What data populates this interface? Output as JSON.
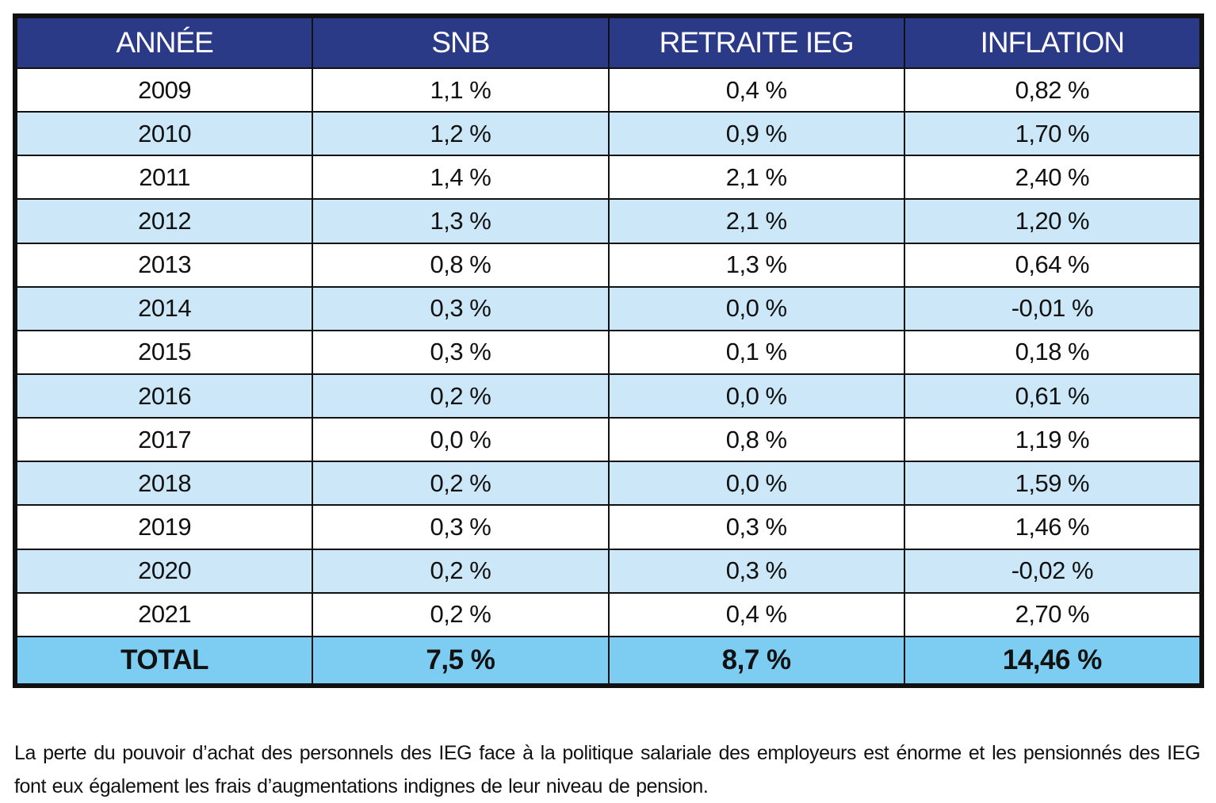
{
  "colors": {
    "header_bg": "#2b3a87",
    "header_fg": "#ffffff",
    "row_a": "#ffffff",
    "row_b": "#cce8f8",
    "total_bg": "#7ccdf1"
  },
  "chart_data": {
    "type": "table",
    "columns": [
      "ANNÉE",
      "SNB",
      "RETRAITE IEG",
      "INFLATION"
    ],
    "rows": [
      [
        "2009",
        "1,1 %",
        "0,4 %",
        "0,82 %"
      ],
      [
        "2010",
        "1,2 %",
        "0,9 %",
        "1,70 %"
      ],
      [
        "2011",
        "1,4 %",
        "2,1 %",
        "2,40 %"
      ],
      [
        "2012",
        "1,3 %",
        "2,1 %",
        "1,20 %"
      ],
      [
        "2013",
        "0,8 %",
        "1,3 %",
        "0,64 %"
      ],
      [
        "2014",
        "0,3 %",
        "0,0 %",
        "-0,01 %"
      ],
      [
        "2015",
        "0,3 %",
        "0,1 %",
        "0,18 %"
      ],
      [
        "2016",
        "0,2 %",
        "0,0 %",
        "0,61 %"
      ],
      [
        "2017",
        "0,0 %",
        "0,8 %",
        "1,19 %"
      ],
      [
        "2018",
        "0,2 %",
        "0,0 %",
        "1,59 %"
      ],
      [
        "2019",
        "0,3 %",
        "0,3 %",
        "1,46 %"
      ],
      [
        "2020",
        "0,2 %",
        "0,3 %",
        "-0,02 %"
      ],
      [
        "2021",
        "0,2 %",
        "0,4 %",
        "2,70 %"
      ]
    ],
    "total": [
      "TOTAL",
      "7,5 %",
      "8,7 %",
      "14,46 %"
    ]
  },
  "caption": "La perte du pouvoir d’achat des personnels des IEG face à la politique salariale des employeurs est énorme et les pensionnés des IEG font eux également les frais d’augmentations indignes de leur niveau de pension."
}
